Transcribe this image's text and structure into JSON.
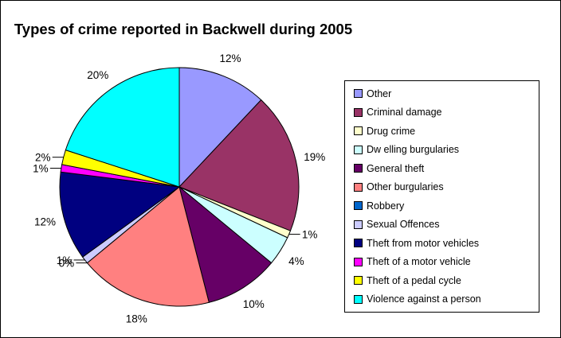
{
  "chart_data": {
    "type": "pie",
    "title": "Types of crime reported in Backwell during 2005",
    "legend_position": "right",
    "slices": [
      {
        "name": "Other",
        "value": 12,
        "label": "12%",
        "color": "#9999FF"
      },
      {
        "name": "Criminal damage",
        "value": 19,
        "label": "19%",
        "color": "#993366"
      },
      {
        "name": "Drug crime",
        "value": 1,
        "label": "1%",
        "color": "#FFFFCC"
      },
      {
        "name": "Dw elling burgularies",
        "value": 4,
        "label": "4%",
        "color": "#CCFFFF"
      },
      {
        "name": "General theft",
        "value": 10,
        "label": "10%",
        "color": "#660066"
      },
      {
        "name": "Other burgularies",
        "value": 18,
        "label": "18%",
        "color": "#FF8080"
      },
      {
        "name": "Robbery",
        "value": 0,
        "label": "0%",
        "color": "#0066CC"
      },
      {
        "name": "Sexual Offences",
        "value": 1,
        "label": "1%",
        "color": "#CCCCFF"
      },
      {
        "name": "Theft from motor vehicles",
        "value": 12,
        "label": "12%",
        "color": "#000080"
      },
      {
        "name": "Theft of a motor vehicle",
        "value": 1,
        "label": "1%",
        "color": "#FF00FF"
      },
      {
        "name": "Theft of a pedal cycle",
        "value": 2,
        "label": "2%",
        "color": "#FFFF00"
      },
      {
        "name": "Violence against a person",
        "value": 20,
        "label": "20%",
        "color": "#00FFFF"
      }
    ]
  }
}
